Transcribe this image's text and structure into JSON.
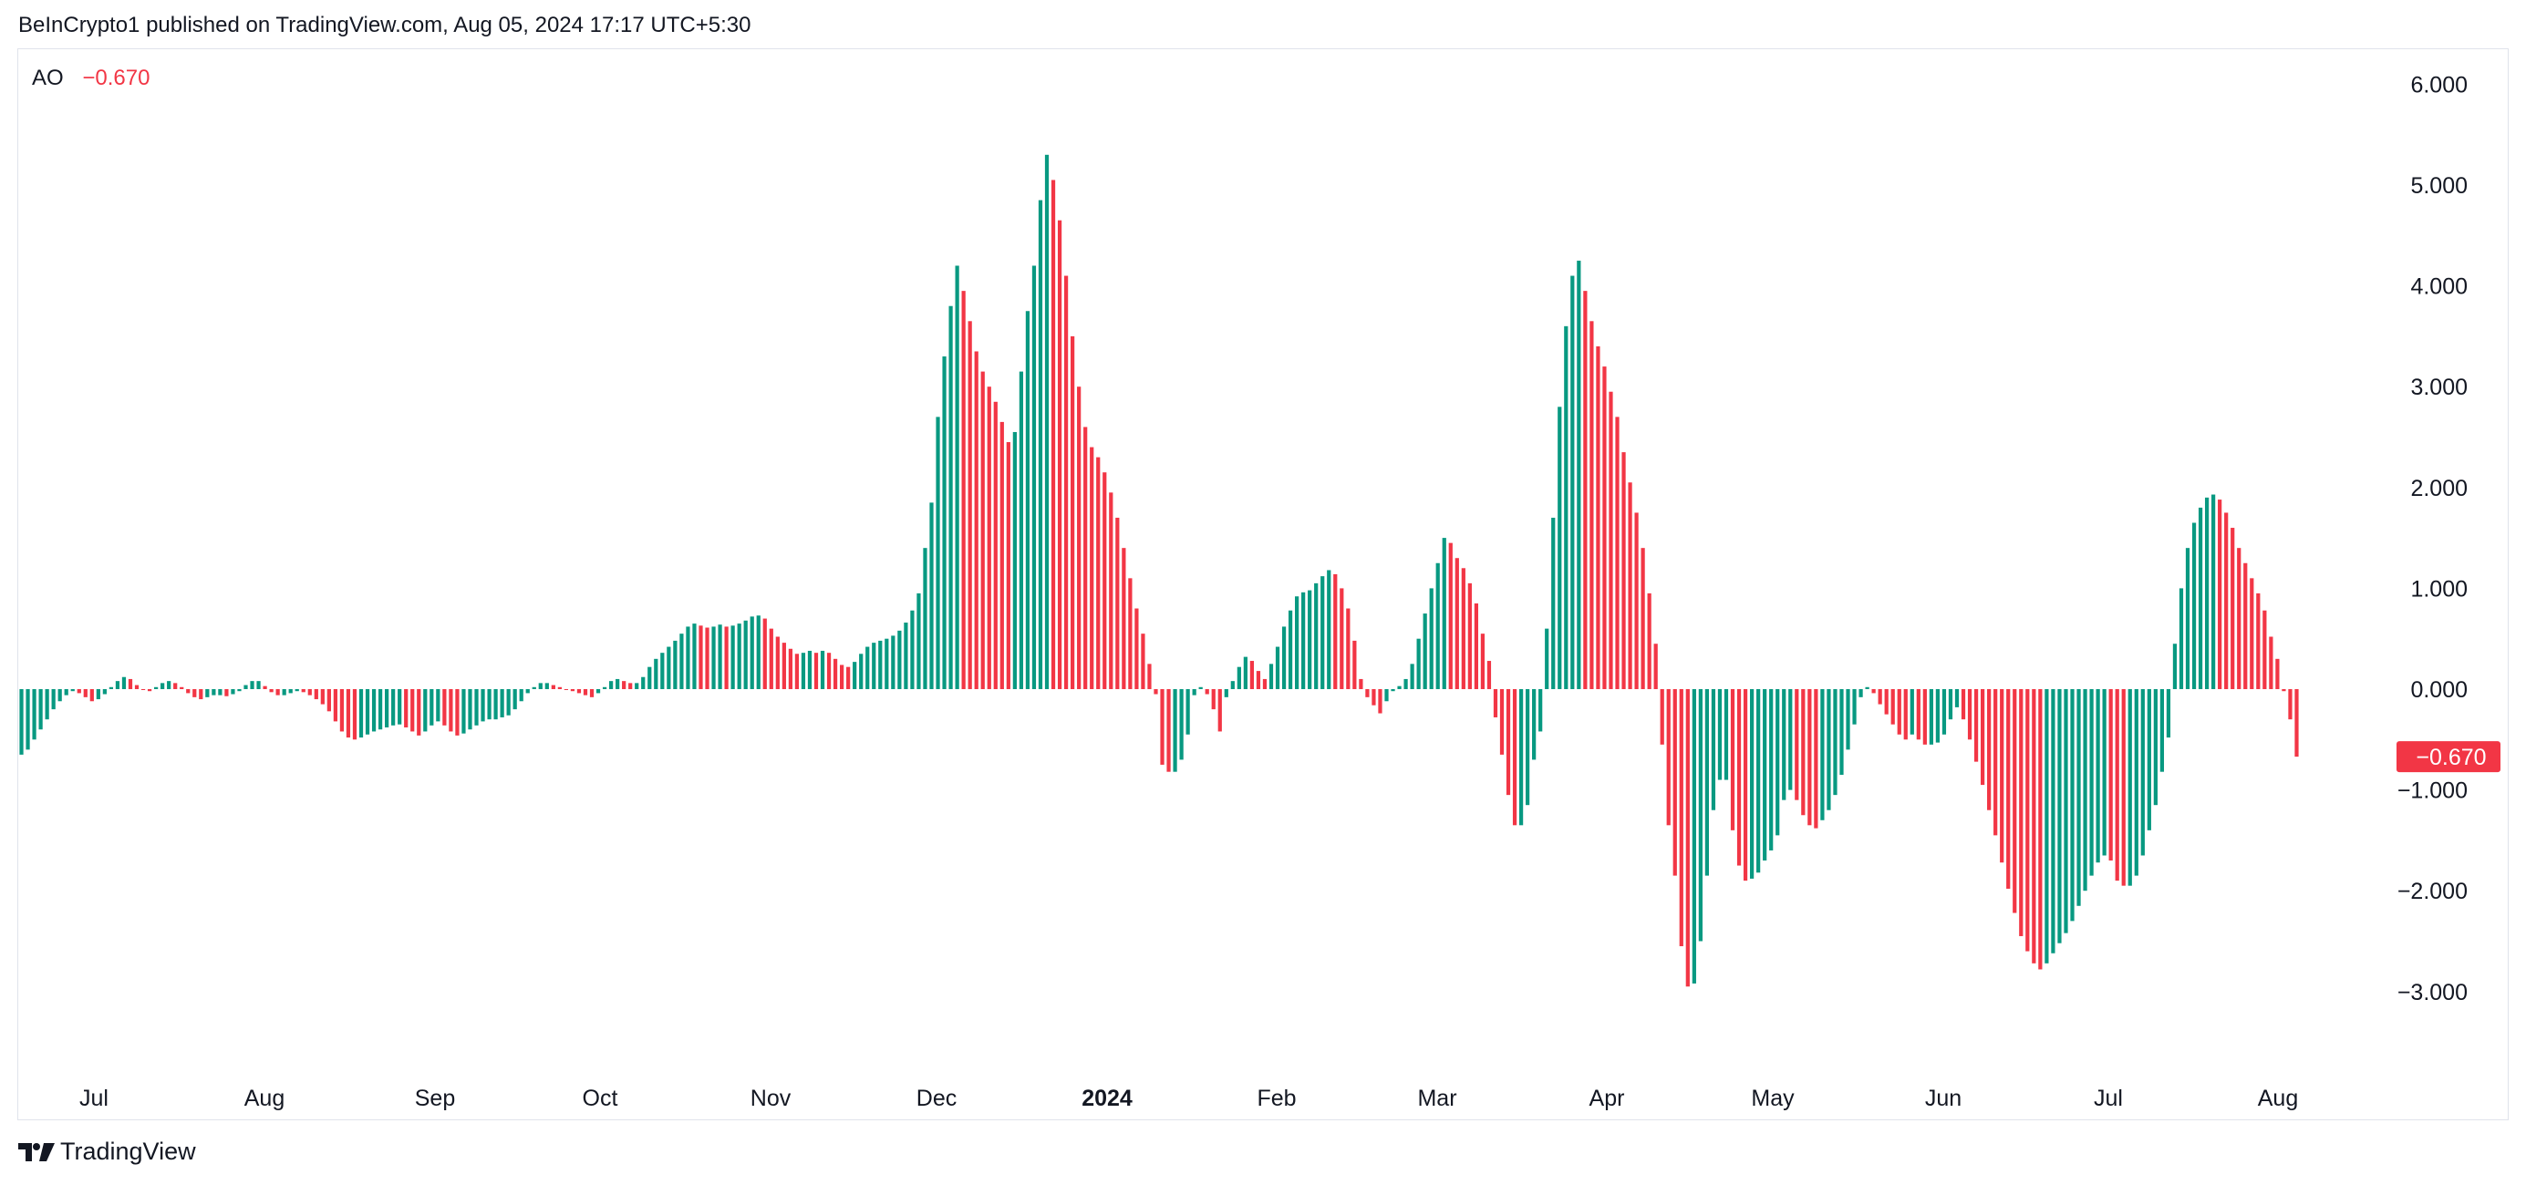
{
  "header": {
    "text": "BeInCrypto1 published on TradingView.com, Aug 05, 2024 17:17 UTC+5:30"
  },
  "indicator": {
    "name": "AO",
    "value_text": "−0.670"
  },
  "footer": {
    "brand": "TradingView",
    "logo_icon": "tradingview-logo-icon"
  },
  "colors": {
    "up": "#089981",
    "down": "#f23645",
    "text": "#131722",
    "border": "#e0e3eb"
  },
  "chart_data": {
    "type": "bar",
    "title": "",
    "xlabel": "",
    "ylabel": "",
    "ylim": [
      -3.65,
      6.3
    ],
    "grid": false,
    "legend": "top-left",
    "y_ticks": [
      {
        "value": 6,
        "label": "6.000"
      },
      {
        "value": 5,
        "label": "5.000"
      },
      {
        "value": 4,
        "label": "4.000"
      },
      {
        "value": 3,
        "label": "3.000"
      },
      {
        "value": 2,
        "label": "2.000"
      },
      {
        "value": 1,
        "label": "1.000"
      },
      {
        "value": 0,
        "label": "0.000"
      },
      {
        "value": -1,
        "label": "−1.000"
      },
      {
        "value": -2,
        "label": "−2.000"
      },
      {
        "value": -3,
        "label": "−3.000"
      }
    ],
    "x_ticks": [
      {
        "label": "Jul",
        "bold": false
      },
      {
        "label": "Aug",
        "bold": false
      },
      {
        "label": "Sep",
        "bold": false
      },
      {
        "label": "Oct",
        "bold": false
      },
      {
        "label": "Nov",
        "bold": false
      },
      {
        "label": "Dec",
        "bold": false
      },
      {
        "label": "2024",
        "bold": true
      },
      {
        "label": "Feb",
        "bold": false
      },
      {
        "label": "Mar",
        "bold": false
      },
      {
        "label": "Apr",
        "bold": false
      },
      {
        "label": "May",
        "bold": false
      },
      {
        "label": "Jun",
        "bold": false
      },
      {
        "label": "Jul",
        "bold": false
      },
      {
        "label": "Aug",
        "bold": false
      }
    ],
    "last_value": {
      "value": -0.67,
      "label": "−0.670"
    },
    "series": [
      {
        "values": [
          -0.65,
          -0.6,
          -0.5,
          -0.4,
          -0.3,
          -0.2,
          -0.12,
          -0.06,
          -0.02,
          -0.04,
          -0.08,
          -0.12,
          -0.1,
          -0.05,
          0.02,
          0.08,
          0.12,
          0.1,
          0.04,
          0.0,
          -0.02,
          0.02,
          0.06,
          0.08,
          0.06,
          0.02,
          -0.04,
          -0.08,
          -0.1,
          -0.08,
          -0.06,
          -0.06,
          -0.07,
          -0.05,
          -0.02,
          0.04,
          0.08,
          0.08,
          0.03,
          -0.03,
          -0.06,
          -0.06,
          -0.04,
          -0.02,
          -0.03,
          -0.06,
          -0.1,
          -0.15,
          -0.22,
          -0.32,
          -0.42,
          -0.48,
          -0.5,
          -0.48,
          -0.45,
          -0.42,
          -0.4,
          -0.38,
          -0.36,
          -0.35,
          -0.38,
          -0.42,
          -0.46,
          -0.42,
          -0.36,
          -0.32,
          -0.36,
          -0.42,
          -0.46,
          -0.44,
          -0.4,
          -0.36,
          -0.32,
          -0.3,
          -0.3,
          -0.28,
          -0.26,
          -0.2,
          -0.12,
          -0.04,
          0.02,
          0.06,
          0.06,
          0.04,
          0.02,
          0.0,
          -0.02,
          -0.04,
          -0.06,
          -0.08,
          -0.04,
          0.02,
          0.08,
          0.1,
          0.08,
          0.06,
          0.06,
          0.12,
          0.22,
          0.3,
          0.36,
          0.42,
          0.48,
          0.55,
          0.62,
          0.65,
          0.63,
          0.61,
          0.62,
          0.64,
          0.62,
          0.63,
          0.65,
          0.68,
          0.72,
          0.73,
          0.7,
          0.6,
          0.52,
          0.46,
          0.4,
          0.35,
          0.36,
          0.38,
          0.36,
          0.38,
          0.36,
          0.3,
          0.24,
          0.22,
          0.27,
          0.35,
          0.42,
          0.46,
          0.48,
          0.5,
          0.53,
          0.58,
          0.66,
          0.78,
          0.95,
          1.4,
          1.85,
          2.7,
          3.3,
          3.8,
          4.2,
          3.95,
          3.65,
          3.35,
          3.15,
          3.0,
          2.85,
          2.65,
          2.45,
          2.55,
          3.15,
          3.75,
          4.2,
          4.85,
          5.3,
          5.05,
          4.65,
          4.1,
          3.5,
          3.0,
          2.6,
          2.4,
          2.3,
          2.15,
          1.95,
          1.7,
          1.4,
          1.1,
          0.8,
          0.55,
          0.25,
          -0.05,
          -0.75,
          -0.82,
          -0.82,
          -0.7,
          -0.45,
          -0.06,
          0.02,
          -0.05,
          -0.2,
          -0.42,
          -0.08,
          0.08,
          0.22,
          0.32,
          0.28,
          0.18,
          0.1,
          0.25,
          0.42,
          0.62,
          0.78,
          0.92,
          0.96,
          0.98,
          1.05,
          1.12,
          1.18,
          1.14,
          1.0,
          0.8,
          0.48,
          0.1,
          -0.08,
          -0.16,
          -0.24,
          -0.12,
          -0.02,
          0.03,
          0.1,
          0.25,
          0.5,
          0.75,
          1.0,
          1.25,
          1.5,
          1.45,
          1.3,
          1.2,
          1.05,
          0.85,
          0.55,
          0.28,
          -0.28,
          -0.65,
          -1.05,
          -1.35,
          -1.35,
          -1.15,
          -0.7,
          -0.42,
          0.6,
          1.7,
          2.8,
          3.6,
          4.1,
          4.25,
          3.95,
          3.65,
          3.4,
          3.2,
          2.95,
          2.7,
          2.35,
          2.05,
          1.75,
          1.4,
          0.95,
          0.45,
          -0.55,
          -1.35,
          -1.85,
          -2.55,
          -2.95,
          -2.92,
          -2.5,
          -1.85,
          -1.2,
          -0.9,
          -0.9,
          -1.4,
          -1.75,
          -1.9,
          -1.88,
          -1.82,
          -1.7,
          -1.6,
          -1.45,
          -1.1,
          -1.0,
          -1.1,
          -1.25,
          -1.35,
          -1.38,
          -1.3,
          -1.2,
          -1.05,
          -0.85,
          -0.6,
          -0.35,
          -0.08,
          0.02,
          -0.04,
          -0.15,
          -0.25,
          -0.35,
          -0.45,
          -0.5,
          -0.45,
          -0.5,
          -0.55,
          -0.55,
          -0.53,
          -0.45,
          -0.3,
          -0.18,
          -0.3,
          -0.5,
          -0.72,
          -0.95,
          -1.2,
          -1.45,
          -1.72,
          -1.98,
          -2.22,
          -2.45,
          -2.6,
          -2.72,
          -2.78,
          -2.72,
          -2.62,
          -2.52,
          -2.42,
          -2.3,
          -2.15,
          -2.0,
          -1.85,
          -1.72,
          -1.65,
          -1.7,
          -1.9,
          -1.95,
          -1.95,
          -1.85,
          -1.65,
          -1.4,
          -1.15,
          -0.82,
          -0.48,
          0.45,
          1.0,
          1.4,
          1.65,
          1.8,
          1.9,
          1.93,
          1.88,
          1.75,
          1.6,
          1.4,
          1.25,
          1.1,
          0.95,
          0.78,
          0.52,
          0.3,
          -0.02,
          -0.3,
          -0.67
        ]
      }
    ]
  }
}
